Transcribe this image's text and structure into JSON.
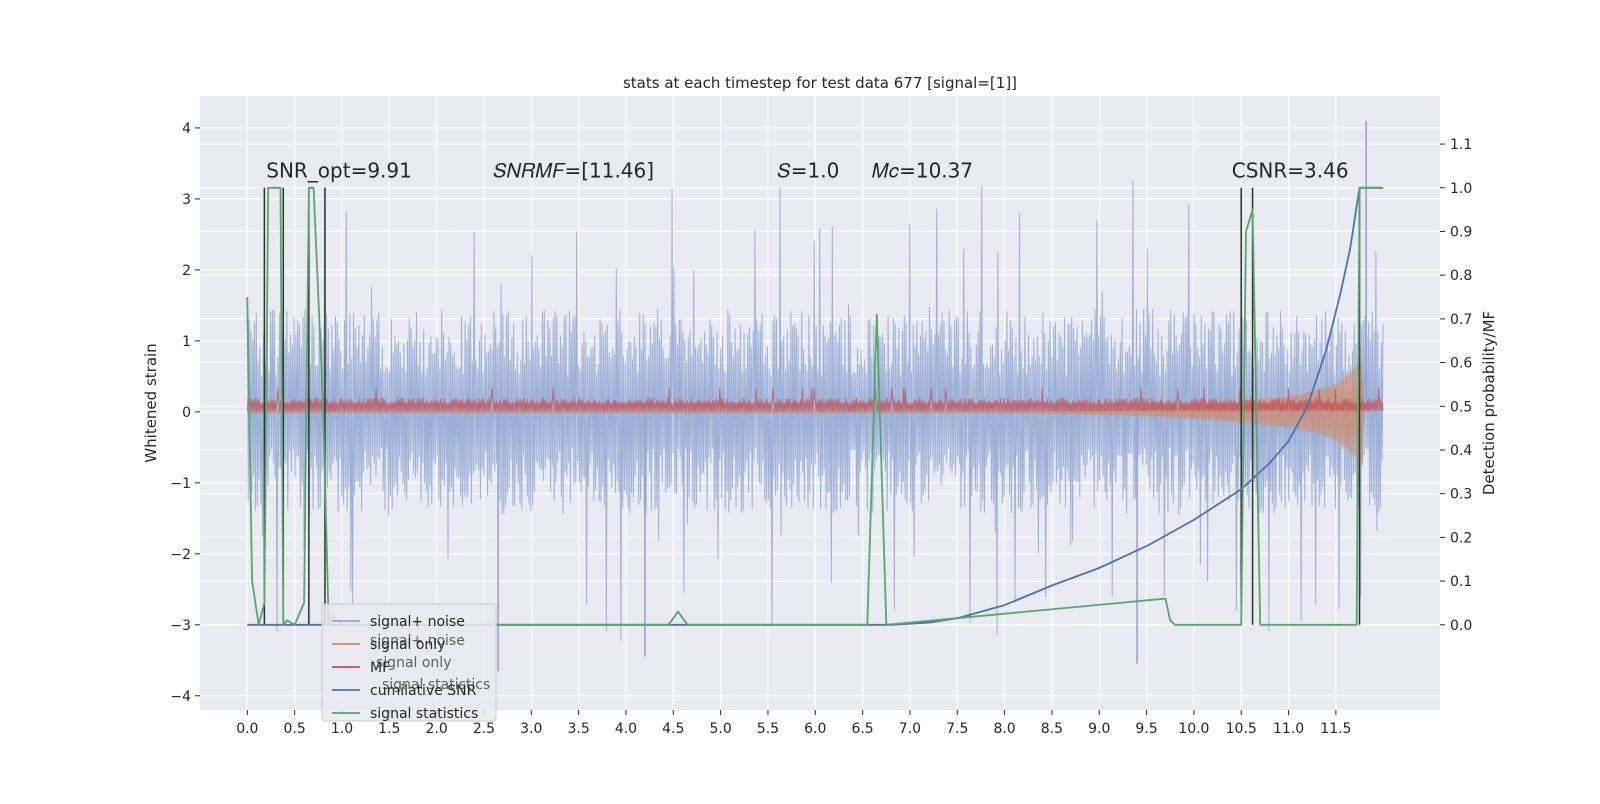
{
  "chart_data": {
    "type": "line",
    "title": "stats at each timestep for test data 677 [signal=[1]]",
    "xlabel": "",
    "ylabel": "Whitened strain",
    "y2label": "Detection probability/MF",
    "xlim": [
      -0.5,
      12.6
    ],
    "ylim": [
      -4.2,
      4.45
    ],
    "y2lim": [
      -0.195,
      1.21
    ],
    "grid": true,
    "x_ticks": [
      "0.0",
      "0.5",
      "1.0",
      "1.5",
      "2.0",
      "2.5",
      "3.0",
      "3.5",
      "4.0",
      "4.5",
      "5.0",
      "5.5",
      "6.0",
      "6.5",
      "7.0",
      "7.5",
      "8.0",
      "8.5",
      "9.0",
      "9.5",
      "10.0",
      "10.5",
      "11.0",
      "11.5"
    ],
    "y_ticks": [
      "4",
      "3",
      "2",
      "1",
      "0",
      "−1",
      "−2",
      "−3",
      "−4"
    ],
    "y2_ticks": [
      "1.1",
      "1.0",
      "0.9",
      "0.8",
      "0.7",
      "0.6",
      "0.5",
      "0.4",
      "0.3",
      "0.2",
      "0.1",
      "0.0"
    ],
    "annotations": [
      {
        "text": "SNR_opt=9.91",
        "x": 0.2,
        "y": 3.3
      },
      {
        "text": "𝑆𝑁𝑅𝑀𝐹=[11.46]",
        "x": 2.6,
        "y": 3.3
      },
      {
        "text": "𝑆=1.0",
        "x": 5.6,
        "y": 3.3
      },
      {
        "text": "𝑀𝑐=10.37",
        "x": 6.6,
        "y": 3.3
      },
      {
        "text": "CSNR=3.46",
        "x": 10.4,
        "y": 3.3
      }
    ],
    "legend": {
      "position": "lower-left",
      "entries": [
        {
          "label": "signal+ noise",
          "color": "#8fa6d4"
        },
        {
          "label": "signal only",
          "color": "#dd8452"
        },
        {
          "label": "MF",
          "color": "#c44e52"
        },
        {
          "label": "cumilative SNR",
          "color": "#4c72b0"
        },
        {
          "label": "signal statistics",
          "color": "#55a868"
        }
      ],
      "ghost_text": [
        "signal+ noise",
        "signal only",
        "signal statistics"
      ]
    },
    "series": [
      {
        "name": "signal+ noise",
        "axis": "left",
        "color": "#8fa6d4",
        "envelope": {
          "x": [
            0,
            12
          ],
          "typical": [
            -1.45,
            1.45
          ],
          "peaks": [
            -2.9,
            3.3
          ]
        },
        "outliers": [
          {
            "x": 11.82,
            "y": 4.1
          },
          {
            "x": 2.65,
            "y": -3.65
          },
          {
            "x": 4.2,
            "y": -3.45
          },
          {
            "x": 9.4,
            "y": -3.55
          }
        ]
      },
      {
        "name": "signal only",
        "axis": "left",
        "color": "#dd8452",
        "envelope": {
          "x": [
            0.0,
            7.5,
            8.5,
            9.5,
            10.0,
            10.5,
            11.0,
            11.3,
            11.5,
            11.65,
            11.78,
            11.8
          ],
          "amp": [
            0.02,
            0.02,
            0.03,
            0.06,
            0.1,
            0.15,
            0.22,
            0.3,
            0.4,
            0.55,
            0.75,
            0.0
          ]
        }
      },
      {
        "name": "MF",
        "axis": "left",
        "color": "#c44e52",
        "band": {
          "x": [
            0,
            12
          ],
          "low": 0.0,
          "high": 0.2
        },
        "spike": {
          "x": 11.75,
          "high": 0.95
        }
      },
      {
        "name": "cumilative SNR",
        "axis": "right",
        "color": "#4c72b0",
        "x": [
          0.0,
          6.8,
          7.2,
          7.5,
          8.0,
          8.5,
          9.0,
          9.5,
          10.0,
          10.5,
          10.8,
          11.0,
          11.2,
          11.4,
          11.55,
          11.65,
          11.75,
          11.8,
          11.9,
          12.0
        ],
        "y": [
          0.0,
          0.0,
          0.005,
          0.015,
          0.045,
          0.09,
          0.13,
          0.18,
          0.24,
          0.31,
          0.37,
          0.42,
          0.5,
          0.63,
          0.76,
          0.86,
          1.0,
          1.0,
          1.0,
          1.0
        ]
      },
      {
        "name": "signal statistics",
        "axis": "right",
        "color": "#55a868",
        "x": [
          0.0,
          0.05,
          0.12,
          0.18,
          0.22,
          0.35,
          0.38,
          0.42,
          0.5,
          0.6,
          0.65,
          0.7,
          0.8,
          0.86,
          0.9,
          1.0,
          1.1,
          4.45,
          4.55,
          4.65,
          6.55,
          6.65,
          6.75,
          9.7,
          9.75,
          9.8,
          10.5,
          10.55,
          10.62,
          10.7,
          10.75,
          11.72,
          11.75,
          11.8,
          12.0
        ],
        "y": [
          0.75,
          0.1,
          0.0,
          0.05,
          1.0,
          1.0,
          0.0,
          0.01,
          0.0,
          0.05,
          1.0,
          1.0,
          0.5,
          0.0,
          0.02,
          0.0,
          0.0,
          0.0,
          0.03,
          0.0,
          0.0,
          0.71,
          0.0,
          0.06,
          0.01,
          0.0,
          0.0,
          0.9,
          0.95,
          0.0,
          0.0,
          0.0,
          1.0,
          1.0,
          1.0
        ]
      }
    ],
    "vertical_lines": {
      "color": "#2f2f2f",
      "x": [
        0.18,
        0.38,
        0.65,
        0.82,
        10.5,
        10.62,
        11.75
      ]
    }
  }
}
